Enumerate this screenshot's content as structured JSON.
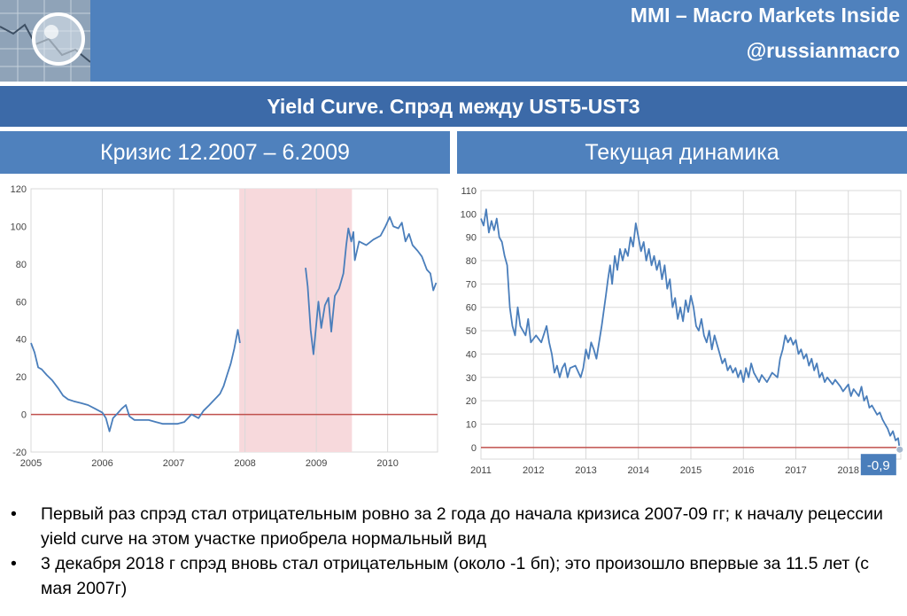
{
  "header": {
    "brand": "MMI – Macro Markets Inside",
    "handle": "@russianmacro",
    "title": "Yield Curve. Спрэд между UST5-UST3"
  },
  "panels": [
    {
      "title": "Кризис 12.2007 – 6.2009"
    },
    {
      "title": "Текущая динамика"
    }
  ],
  "bullets": [
    "Первый раз спрэд стал отрицательным ровно за 2 года до начала кризиса 2007-09 гг; к началу рецессии yield curve на этом участке приобрела нормальный вид",
    "3 декабря 2018 г спрэд вновь стал отрицательным (около -1 бп); это произошло впервые за 11.5 лет (с мая 2007г)"
  ],
  "colors": {
    "banner": "#4f81bd",
    "title_bar": "#3c6aa8",
    "line": "#4a7ebb",
    "zero_line": "#c0504d",
    "recession_shade": "#f7d9dc"
  },
  "chart_data": [
    {
      "type": "line",
      "xlim": [
        2005,
        2010.7
      ],
      "ylim": [
        -20,
        120
      ],
      "x_ticks": [
        "2005",
        "2006",
        "2007",
        "2008",
        "2009",
        "2010"
      ],
      "y_ticks": [
        "-20",
        "0",
        "20",
        "40",
        "60",
        "80",
        "100",
        "120"
      ],
      "shaded_region": [
        2007.92,
        2009.5
      ],
      "zero_line": true,
      "grid": "vertical",
      "series": [
        {
          "segments": [
            [
              [
                2005.0,
                38
              ],
              [
                2005.05,
                33
              ],
              [
                2005.1,
                25
              ],
              [
                2005.15,
                24
              ],
              [
                2005.22,
                21
              ],
              [
                2005.3,
                18
              ],
              [
                2005.38,
                14
              ],
              [
                2005.45,
                10
              ],
              [
                2005.52,
                8
              ],
              [
                2005.6,
                7
              ],
              [
                2005.7,
                6
              ],
              [
                2005.8,
                5
              ],
              [
                2005.9,
                3
              ],
              [
                2006.0,
                1
              ],
              [
                2006.05,
                -2
              ],
              [
                2006.1,
                -9
              ],
              [
                2006.15,
                -2
              ],
              [
                2006.2,
                0
              ],
              [
                2006.27,
                3
              ],
              [
                2006.33,
                5
              ],
              [
                2006.38,
                -1
              ],
              [
                2006.45,
                -3
              ],
              [
                2006.55,
                -3
              ],
              [
                2006.65,
                -3
              ],
              [
                2006.75,
                -4
              ],
              [
                2006.85,
                -5
              ],
              [
                2006.95,
                -5
              ],
              [
                2007.05,
                -5
              ],
              [
                2007.15,
                -4
              ],
              [
                2007.25,
                0
              ],
              [
                2007.35,
                -2
              ],
              [
                2007.42,
                2
              ],
              [
                2007.5,
                5
              ],
              [
                2007.55,
                7
              ],
              [
                2007.6,
                9
              ],
              [
                2007.65,
                11
              ],
              [
                2007.7,
                15
              ],
              [
                2007.75,
                21
              ],
              [
                2007.8,
                27
              ],
              [
                2007.85,
                35
              ],
              [
                2007.9,
                45
              ],
              [
                2007.93,
                38
              ]
            ],
            [
              [
                2008.85,
                78
              ],
              [
                2008.88,
                68
              ],
              [
                2008.92,
                45
              ],
              [
                2008.96,
                32
              ],
              [
                2009.0,
                48
              ],
              [
                2009.03,
                60
              ],
              [
                2009.07,
                46
              ],
              [
                2009.12,
                58
              ],
              [
                2009.17,
                62
              ],
              [
                2009.21,
                44
              ],
              [
                2009.26,
                63
              ],
              [
                2009.32,
                67
              ],
              [
                2009.38,
                75
              ],
              [
                2009.42,
                90
              ],
              [
                2009.45,
                99
              ],
              [
                2009.49,
                92
              ],
              [
                2009.52,
                97
              ],
              [
                2009.54,
                82
              ],
              [
                2009.6,
                92
              ],
              [
                2009.7,
                90
              ],
              [
                2009.8,
                93
              ],
              [
                2009.9,
                95
              ],
              [
                2009.97,
                100
              ],
              [
                2010.03,
                105
              ],
              [
                2010.08,
                100
              ],
              [
                2010.15,
                99
              ],
              [
                2010.2,
                102
              ],
              [
                2010.25,
                92
              ],
              [
                2010.3,
                96
              ],
              [
                2010.35,
                90
              ],
              [
                2010.42,
                87
              ],
              [
                2010.48,
                84
              ],
              [
                2010.55,
                77
              ],
              [
                2010.6,
                75
              ],
              [
                2010.64,
                66
              ],
              [
                2010.68,
                70
              ]
            ]
          ]
        }
      ]
    },
    {
      "type": "line",
      "xlim": [
        2011,
        2019.0
      ],
      "ylim": [
        -5,
        110
      ],
      "x_ticks": [
        "2011",
        "2012",
        "2013",
        "2014",
        "2015",
        "2016",
        "2017",
        "2018"
      ],
      "y_ticks": [
        "0",
        "10",
        "20",
        "30",
        "40",
        "50",
        "60",
        "70",
        "80",
        "90",
        "100",
        "110"
      ],
      "zero_line": true,
      "grid": "both",
      "end_label": "-0,9",
      "series": [
        {
          "segments": [
            [
              [
                2011.0,
                98
              ],
              [
                2011.05,
                95
              ],
              [
                2011.1,
                102
              ],
              [
                2011.15,
                92
              ],
              [
                2011.2,
                97
              ],
              [
                2011.25,
                93
              ],
              [
                2011.3,
                98
              ],
              [
                2011.35,
                90
              ],
              [
                2011.4,
                88
              ],
              [
                2011.45,
                82
              ],
              [
                2011.5,
                78
              ],
              [
                2011.55,
                60
              ],
              [
                2011.6,
                52
              ],
              [
                2011.65,
                48
              ],
              [
                2011.7,
                60
              ],
              [
                2011.75,
                52
              ],
              [
                2011.85,
                48
              ],
              [
                2011.9,
                55
              ],
              [
                2011.95,
                45
              ],
              [
                2012.05,
                48
              ],
              [
                2012.15,
                45
              ],
              [
                2012.25,
                52
              ],
              [
                2012.3,
                45
              ],
              [
                2012.35,
                40
              ],
              [
                2012.4,
                32
              ],
              [
                2012.45,
                35
              ],
              [
                2012.5,
                30
              ],
              [
                2012.55,
                34
              ],
              [
                2012.6,
                36
              ],
              [
                2012.65,
                30
              ],
              [
                2012.7,
                34
              ],
              [
                2012.8,
                35
              ],
              [
                2012.9,
                30
              ],
              [
                2012.95,
                34
              ],
              [
                2013.0,
                42
              ],
              [
                2013.05,
                38
              ],
              [
                2013.1,
                45
              ],
              [
                2013.15,
                42
              ],
              [
                2013.2,
                38
              ],
              [
                2013.3,
                52
              ],
              [
                2013.38,
                65
              ],
              [
                2013.42,
                72
              ],
              [
                2013.46,
                78
              ],
              [
                2013.5,
                70
              ],
              [
                2013.55,
                82
              ],
              [
                2013.6,
                76
              ],
              [
                2013.65,
                85
              ],
              [
                2013.7,
                80
              ],
              [
                2013.75,
                85
              ],
              [
                2013.8,
                82
              ],
              [
                2013.85,
                90
              ],
              [
                2013.9,
                86
              ],
              [
                2013.95,
                96
              ],
              [
                2014.0,
                90
              ],
              [
                2014.05,
                84
              ],
              [
                2014.1,
                88
              ],
              [
                2014.15,
                80
              ],
              [
                2014.2,
                85
              ],
              [
                2014.25,
                78
              ],
              [
                2014.3,
                82
              ],
              [
                2014.35,
                76
              ],
              [
                2014.4,
                80
              ],
              [
                2014.45,
                72
              ],
              [
                2014.5,
                78
              ],
              [
                2014.55,
                68
              ],
              [
                2014.6,
                72
              ],
              [
                2014.65,
                60
              ],
              [
                2014.7,
                64
              ],
              [
                2014.75,
                55
              ],
              [
                2014.8,
                60
              ],
              [
                2014.85,
                54
              ],
              [
                2014.9,
                63
              ],
              [
                2014.95,
                58
              ],
              [
                2015.0,
                65
              ],
              [
                2015.05,
                60
              ],
              [
                2015.1,
                52
              ],
              [
                2015.15,
                50
              ],
              [
                2015.2,
                55
              ],
              [
                2015.25,
                48
              ],
              [
                2015.3,
                45
              ],
              [
                2015.35,
                50
              ],
              [
                2015.4,
                42
              ],
              [
                2015.45,
                48
              ],
              [
                2015.5,
                44
              ],
              [
                2015.55,
                40
              ],
              [
                2015.6,
                36
              ],
              [
                2015.65,
                38
              ],
              [
                2015.7,
                33
              ],
              [
                2015.75,
                35
              ],
              [
                2015.8,
                32
              ],
              [
                2015.85,
                34
              ],
              [
                2015.9,
                30
              ],
              [
                2015.95,
                33
              ],
              [
                2016.0,
                28
              ],
              [
                2016.05,
                34
              ],
              [
                2016.1,
                30
              ],
              [
                2016.15,
                36
              ],
              [
                2016.2,
                32
              ],
              [
                2016.3,
                28
              ],
              [
                2016.35,
                31
              ],
              [
                2016.45,
                28
              ],
              [
                2016.55,
                32
              ],
              [
                2016.65,
                30
              ],
              [
                2016.7,
                38
              ],
              [
                2016.75,
                42
              ],
              [
                2016.8,
                48
              ],
              [
                2016.85,
                45
              ],
              [
                2016.9,
                47
              ],
              [
                2016.95,
                44
              ],
              [
                2017.0,
                46
              ],
              [
                2017.05,
                40
              ],
              [
                2017.1,
                42
              ],
              [
                2017.15,
                38
              ],
              [
                2017.2,
                40
              ],
              [
                2017.25,
                35
              ],
              [
                2017.3,
                38
              ],
              [
                2017.35,
                33
              ],
              [
                2017.4,
                36
              ],
              [
                2017.45,
                30
              ],
              [
                2017.5,
                32
              ],
              [
                2017.55,
                28
              ],
              [
                2017.6,
                30
              ],
              [
                2017.7,
                27
              ],
              [
                2017.75,
                29
              ],
              [
                2017.85,
                26
              ],
              [
                2017.9,
                24
              ],
              [
                2018.0,
                27
              ],
              [
                2018.05,
                22
              ],
              [
                2018.1,
                25
              ],
              [
                2018.2,
                22
              ],
              [
                2018.25,
                26
              ],
              [
                2018.3,
                20
              ],
              [
                2018.35,
                22
              ],
              [
                2018.4,
                17
              ],
              [
                2018.45,
                18
              ],
              [
                2018.55,
                14
              ],
              [
                2018.6,
                15
              ],
              [
                2018.65,
                12
              ],
              [
                2018.7,
                10
              ],
              [
                2018.75,
                8
              ],
              [
                2018.8,
                5
              ],
              [
                2018.85,
                7
              ],
              [
                2018.9,
                3
              ],
              [
                2018.95,
                4
              ],
              [
                2018.98,
                -0.9
              ]
            ]
          ]
        }
      ]
    }
  ]
}
